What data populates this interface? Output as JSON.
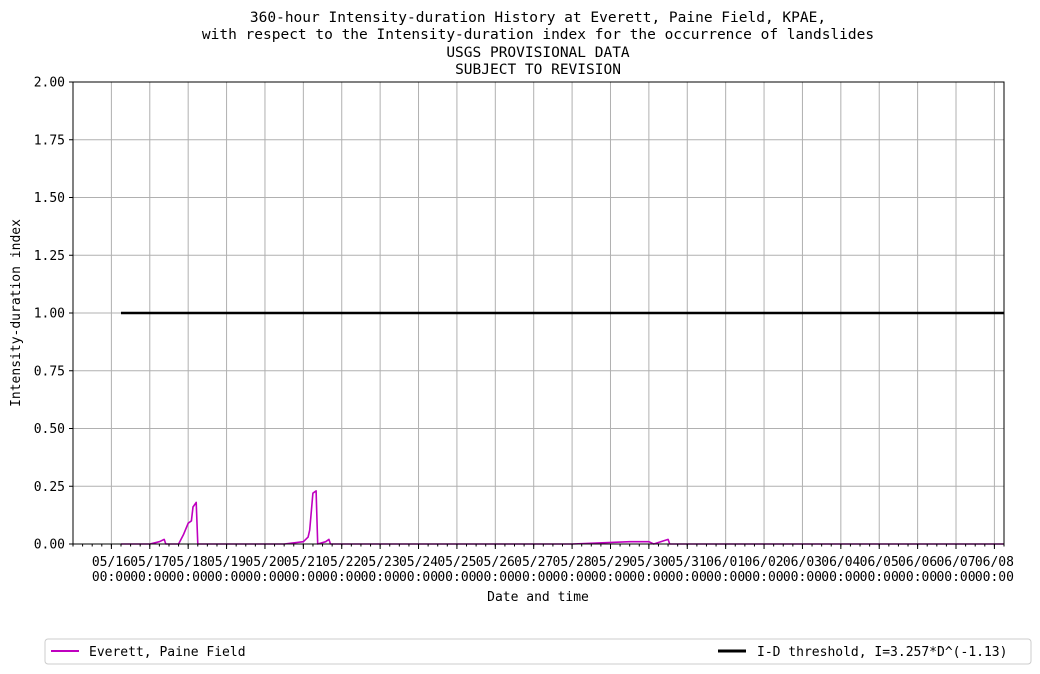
{
  "chart_data": {
    "type": "line",
    "title_lines": [
      "360-hour Intensity-duration History at Everett, Paine Field, KPAE,",
      "with respect to the Intensity-duration index for the occurrence of landslides",
      "USGS PROVISIONAL DATA",
      "SUBJECT TO REVISION"
    ],
    "xlabel": "Date and time",
    "ylabel": "Intensity-duration index",
    "ylim": [
      0,
      2.0
    ],
    "xlim": [
      "2024-05-15 00:00",
      "2024-06-08 06:00"
    ],
    "y_ticks": [
      "0.00",
      "0.25",
      "0.50",
      "0.75",
      "1.00",
      "1.25",
      "1.50",
      "1.75",
      "2.00"
    ],
    "x_ticks": [
      {
        "date": "05/16",
        "time": "00:00"
      },
      {
        "date": "05/17",
        "time": "00:00"
      },
      {
        "date": "05/18",
        "time": "00:00"
      },
      {
        "date": "05/19",
        "time": "00:00"
      },
      {
        "date": "05/20",
        "time": "00:00"
      },
      {
        "date": "05/21",
        "time": "00:00"
      },
      {
        "date": "05/22",
        "time": "00:00"
      },
      {
        "date": "05/23",
        "time": "00:00"
      },
      {
        "date": "05/24",
        "time": "00:00"
      },
      {
        "date": "05/25",
        "time": "00:00"
      },
      {
        "date": "05/26",
        "time": "00:00"
      },
      {
        "date": "05/27",
        "time": "00:00"
      },
      {
        "date": "05/28",
        "time": "00:00"
      },
      {
        "date": "05/29",
        "time": "00:00"
      },
      {
        "date": "05/30",
        "time": "00:00"
      },
      {
        "date": "05/31",
        "time": "00:00"
      },
      {
        "date": "06/01",
        "time": "00:00"
      },
      {
        "date": "06/02",
        "time": "00:00"
      },
      {
        "date": "06/03",
        "time": "00:00"
      },
      {
        "date": "06/04",
        "time": "00:00"
      },
      {
        "date": "06/05",
        "time": "00:00"
      },
      {
        "date": "06/06",
        "time": "00:00"
      },
      {
        "date": "06/07",
        "time": "00:00"
      },
      {
        "date": "06/08",
        "time": "00:00"
      }
    ],
    "grid": true,
    "legend_position": "bottom",
    "series": [
      {
        "name": "Everett, Paine Field",
        "color": "#bf00bf",
        "points": [
          [
            "2024-05-16 06:00",
            0.0
          ],
          [
            "2024-05-17 00:00",
            0.0
          ],
          [
            "2024-05-17 06:00",
            0.01
          ],
          [
            "2024-05-17 09:00",
            0.02
          ],
          [
            "2024-05-17 10:00",
            0.0
          ],
          [
            "2024-05-17 18:00",
            0.0
          ],
          [
            "2024-05-17 21:00",
            0.04
          ],
          [
            "2024-05-18 00:00",
            0.09
          ],
          [
            "2024-05-18 02:00",
            0.1
          ],
          [
            "2024-05-18 03:00",
            0.16
          ],
          [
            "2024-05-18 05:00",
            0.18
          ],
          [
            "2024-05-18 06:00",
            0.0
          ],
          [
            "2024-05-20 12:00",
            0.0
          ],
          [
            "2024-05-21 00:00",
            0.01
          ],
          [
            "2024-05-21 03:00",
            0.03
          ],
          [
            "2024-05-21 04:00",
            0.06
          ],
          [
            "2024-05-21 06:00",
            0.22
          ],
          [
            "2024-05-21 08:00",
            0.23
          ],
          [
            "2024-05-21 09:00",
            0.0
          ],
          [
            "2024-05-21 14:00",
            0.01
          ],
          [
            "2024-05-21 16:00",
            0.02
          ],
          [
            "2024-05-21 17:00",
            0.0
          ],
          [
            "2024-05-28 00:00",
            0.0
          ],
          [
            "2024-05-29 12:00",
            0.01
          ],
          [
            "2024-05-30 00:00",
            0.01
          ],
          [
            "2024-05-30 03:00",
            0.0
          ],
          [
            "2024-05-30 12:00",
            0.02
          ],
          [
            "2024-05-30 13:00",
            0.0
          ],
          [
            "2024-06-08 06:00",
            0.0
          ]
        ]
      },
      {
        "name": "I-D threshold, I=3.257*D^(-1.13)",
        "color": "#000000",
        "points": [
          [
            "2024-05-16 06:00",
            1.0
          ],
          [
            "2024-06-08 06:00",
            1.0
          ]
        ]
      }
    ]
  },
  "legend": {
    "items": [
      {
        "label": "Everett, Paine Field",
        "color": "#bf00bf"
      },
      {
        "label": "I-D threshold, I=3.257*D^(-1.13)",
        "color": "#000000"
      }
    ]
  }
}
